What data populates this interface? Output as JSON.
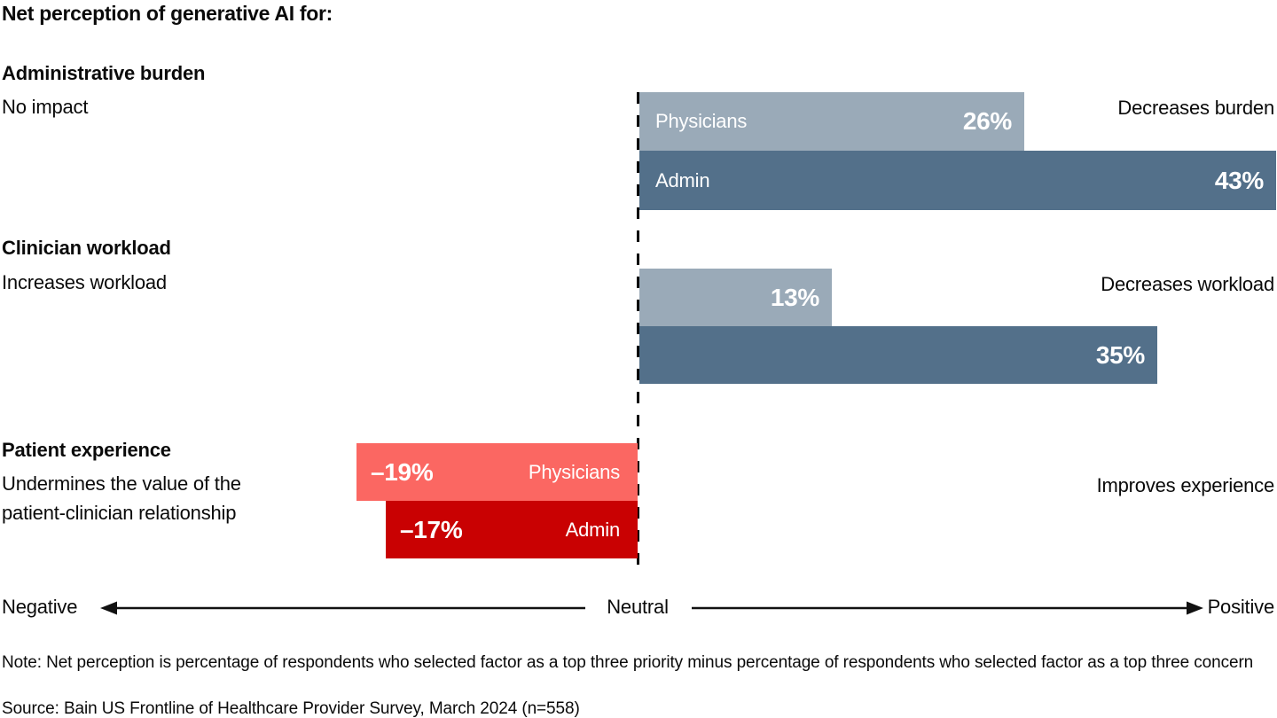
{
  "title": "Net perception of generative AI for:",
  "sections": {
    "admin_burden": {
      "heading": "Administrative burden",
      "left_label": "No impact",
      "right_label": "Decreases burden",
      "bar1_name": "Physicians",
      "bar1_value": "26%",
      "bar2_name": "Admin",
      "bar2_value": "43%"
    },
    "clinician_workload": {
      "heading": "Clinician workload",
      "left_label": "Increases workload",
      "right_label": "Decreases workload",
      "bar1_value": "13%",
      "bar2_value": "35%"
    },
    "patient_experience": {
      "heading": "Patient experience",
      "left_label_line1": "Undermines the value of the",
      "left_label_line2": "patient-clinician relationship",
      "right_label": "Improves experience",
      "bar1_value": "–19%",
      "bar1_name": "Physicians",
      "bar2_value": "–17%",
      "bar2_name": "Admin"
    }
  },
  "axis": {
    "negative": "Negative",
    "neutral": "Neutral",
    "positive": "Positive"
  },
  "footer": {
    "note": "Note: Net perception is percentage of respondents who selected factor as a top three priority minus percentage of respondents who selected factor as a top three concern",
    "source": "Source: Bain US Frontline of Healthcare Provider Survey, March 2024 (n=558)"
  },
  "colors": {
    "physicians_positive": "#9AAAB8",
    "admin_positive": "#53708A",
    "physicians_negative": "#FB6762",
    "admin_negative": "#C90102",
    "text": "#0a0a0a",
    "background": "#ffffff"
  },
  "chart_data": {
    "type": "bar",
    "orientation": "horizontal-diverging",
    "title": "Net perception of generative AI for:",
    "unit": "percent (net perception)",
    "categories": [
      "Administrative burden",
      "Clinician workload",
      "Patient experience"
    ],
    "series": [
      {
        "name": "Physicians",
        "values": [
          26,
          13,
          -19
        ]
      },
      {
        "name": "Admin",
        "values": [
          43,
          35,
          -17
        ]
      }
    ],
    "category_annotations": [
      {
        "category": "Administrative burden",
        "negative_side_label": "No impact",
        "positive_side_label": "Decreases burden"
      },
      {
        "category": "Clinician workload",
        "negative_side_label": "Increases workload",
        "positive_side_label": "Decreases workload"
      },
      {
        "category": "Patient experience",
        "negative_side_label": "Undermines the value of the patient-clinician relationship",
        "positive_side_label": "Improves experience"
      }
    ],
    "axis": {
      "left_end": "Negative",
      "zero": "Neutral",
      "right_end": "Positive",
      "xlim": [
        -43,
        43
      ]
    },
    "grid": false,
    "legend": "labels inside bars",
    "zero_line": "dashed vertical"
  }
}
